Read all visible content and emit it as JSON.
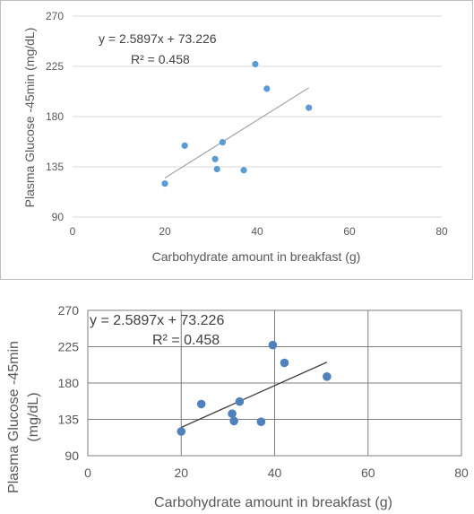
{
  "chart_data": [
    {
      "type": "scatter",
      "xlabel": "Carbohydrate amount in breakfast (g)",
      "ylabel": "Plasma Glucose -45min (mg/dL)",
      "xlim": [
        0,
        80
      ],
      "ylim": [
        90,
        270
      ],
      "xticks": [
        "0",
        "20",
        "40",
        "60",
        "80"
      ],
      "yticks": [
        "90",
        "135",
        "180",
        "225",
        "270"
      ],
      "x": [
        20,
        24.3,
        30.9,
        31.3,
        32.5,
        37.1,
        39.6,
        42.1,
        51.2
      ],
      "y": [
        120,
        154,
        142,
        133,
        157,
        132,
        227,
        205,
        188
      ],
      "trendline": {
        "equation": "y = 2.5897x + 73.226",
        "r2": "R² = 0.458",
        "slope": 2.5897,
        "intercept": 73.226,
        "x_range": [
          20,
          51.2
        ]
      },
      "grid": "horizontal",
      "colors": {
        "points": "#5b9bd5",
        "trendline": "#a6a6a6"
      }
    },
    {
      "type": "scatter",
      "xlabel": "Carbohydrate amount in breakfast (g)",
      "ylabel_lines": [
        "Plasma Glucose -45min",
        "(mg/dL)"
      ],
      "xlim": [
        0,
        80
      ],
      "ylim": [
        90,
        270
      ],
      "xticks": [
        "0",
        "20",
        "40",
        "60",
        "80"
      ],
      "yticks": [
        "90",
        "135",
        "180",
        "225",
        "270"
      ],
      "x": [
        20,
        24.3,
        30.9,
        31.3,
        32.5,
        37.1,
        39.6,
        42.1,
        51.2
      ],
      "y": [
        120,
        154,
        142,
        133,
        157,
        132,
        227,
        205,
        188
      ],
      "trendline": {
        "equation": "y = 2.5897x + 73.226",
        "r2": "R² = 0.458",
        "slope": 2.5897,
        "intercept": 73.226,
        "x_range": [
          20,
          51.2
        ]
      },
      "grid": "both",
      "colors": {
        "points": "#4f81bd",
        "trendline": "#404040"
      }
    }
  ]
}
